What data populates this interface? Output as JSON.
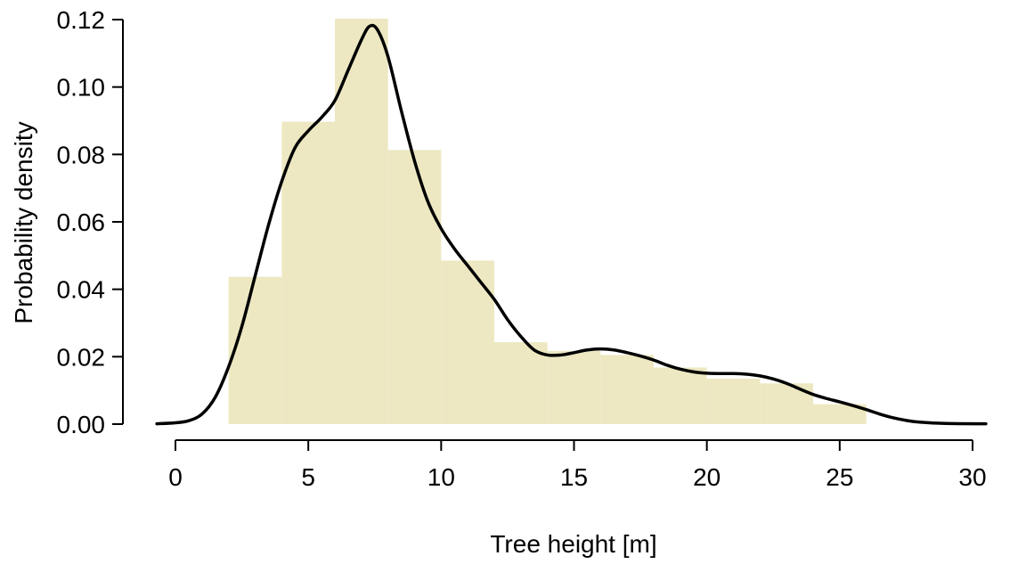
{
  "chart_data": {
    "type": "histogram",
    "xlabel": "Tree height [m]",
    "ylabel": "Probability density",
    "xlim": [
      -1,
      30.6
    ],
    "ylim": [
      0,
      0.12
    ],
    "x_ticks": [
      0,
      5,
      10,
      15,
      20,
      25,
      30
    ],
    "x_tick_labels": [
      "0",
      "5",
      "10",
      "15",
      "20",
      "25",
      "30"
    ],
    "y_ticks": [
      0,
      0.02,
      0.04,
      0.06,
      0.08,
      0.1,
      0.12
    ],
    "y_tick_labels": [
      "0.00",
      "0.02",
      "0.04",
      "0.06",
      "0.08",
      "0.10",
      "0.12"
    ],
    "bar_color": "#ede8c2",
    "line_color": "#000000",
    "grid": false,
    "histogram": {
      "bin_edges": [
        2,
        4,
        6,
        8,
        10,
        12,
        14,
        16,
        18,
        20,
        22,
        24,
        26
      ],
      "density": [
        0.0437,
        0.0897,
        0.1203,
        0.0813,
        0.0485,
        0.0243,
        0.0217,
        0.0205,
        0.0168,
        0.0135,
        0.0121,
        0.0059
      ]
    },
    "density_curve": {
      "x": [
        -0.7,
        0,
        0.5,
        1.0,
        1.5,
        2.0,
        2.5,
        3.0,
        3.5,
        4.0,
        4.5,
        5.0,
        5.5,
        6.0,
        6.5,
        7.0,
        7.3,
        7.6,
        8.0,
        8.5,
        9.0,
        9.5,
        10.0,
        10.5,
        11.0,
        11.5,
        12.0,
        12.5,
        13.0,
        13.5,
        14.0,
        14.5,
        15.0,
        15.5,
        16.0,
        16.5,
        17.0,
        17.5,
        18.0,
        18.5,
        19.0,
        19.5,
        20.0,
        20.5,
        21.0,
        21.5,
        22.0,
        22.5,
        23.0,
        23.5,
        24.0,
        24.5,
        25.0,
        25.5,
        26.0,
        26.5,
        27.0,
        27.5,
        28.0,
        29.0,
        30.5
      ],
      "y": [
        0.0001,
        0.0004,
        0.001,
        0.003,
        0.008,
        0.017,
        0.029,
        0.044,
        0.059,
        0.072,
        0.082,
        0.087,
        0.091,
        0.096,
        0.105,
        0.114,
        0.118,
        0.117,
        0.109,
        0.093,
        0.078,
        0.066,
        0.058,
        0.052,
        0.047,
        0.042,
        0.037,
        0.031,
        0.026,
        0.022,
        0.0205,
        0.0205,
        0.0212,
        0.022,
        0.0223,
        0.022,
        0.0212,
        0.0202,
        0.019,
        0.0175,
        0.0163,
        0.0155,
        0.0151,
        0.015,
        0.015,
        0.0148,
        0.0143,
        0.0134,
        0.0121,
        0.0104,
        0.0088,
        0.0076,
        0.0066,
        0.0055,
        0.0043,
        0.003,
        0.0019,
        0.0011,
        0.0006,
        0.0002,
        0.0001
      ]
    }
  }
}
